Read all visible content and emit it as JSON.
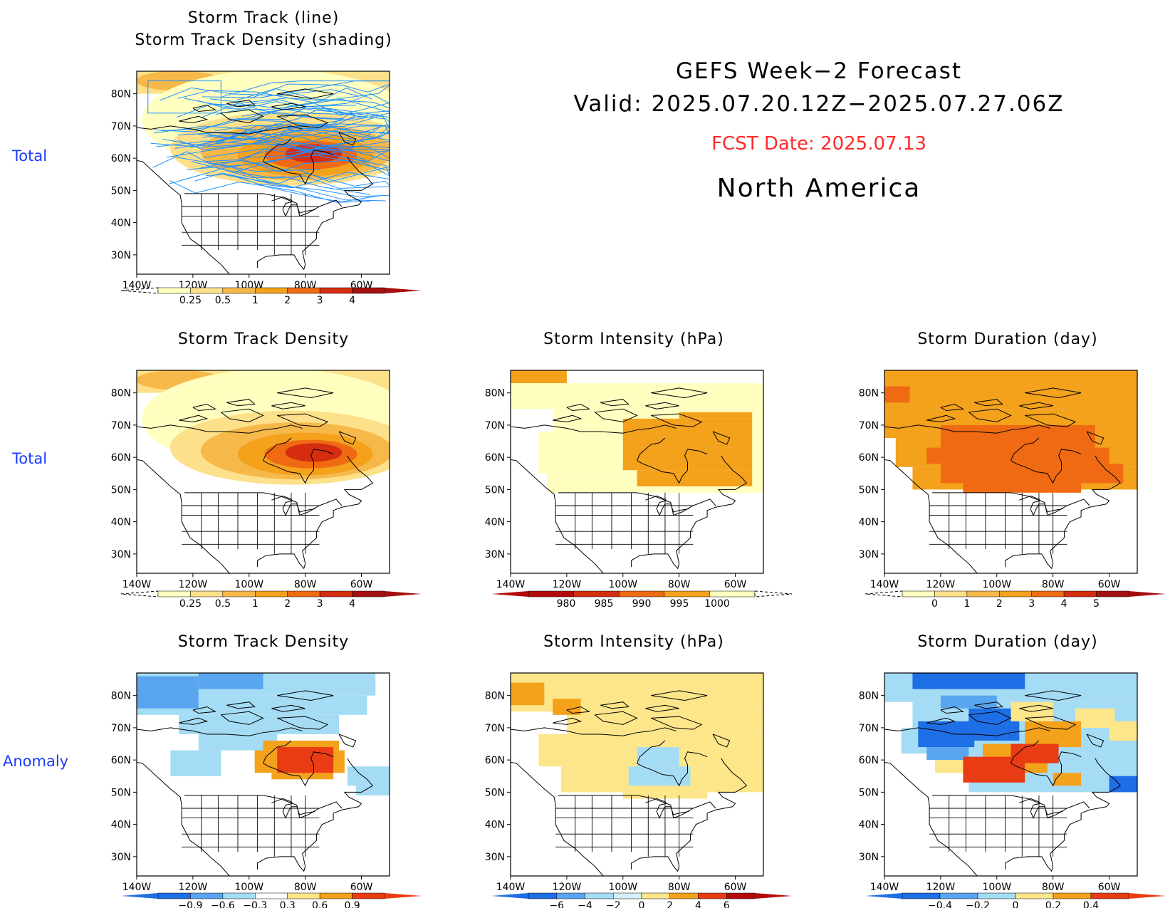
{
  "header": {
    "title": "GEFS Week−2 Forecast",
    "valid": "Valid: 2025.07.20.12Z−2025.07.27.06Z",
    "fcst_date": "FCST Date: 2025.07.13",
    "region": "North America"
  },
  "row_labels": [
    "Total",
    "Total",
    "Anomaly"
  ],
  "axis": {
    "lat_labels": [
      "80N",
      "70N",
      "60N",
      "50N",
      "40N",
      "30N"
    ],
    "lon_labels": [
      "140W",
      "120W",
      "100W",
      "80W",
      "60W"
    ]
  },
  "panels": [
    {
      "id": "p1",
      "row": 0,
      "col": 0,
      "title": "Storm Track (line)\nStorm Track Density (shading)",
      "variable": "density_tracks",
      "colorbar": "cb_density"
    },
    {
      "id": "p2",
      "row": 1,
      "col": 0,
      "title": "Storm Track Density",
      "variable": "density",
      "colorbar": "cb_density"
    },
    {
      "id": "p3",
      "row": 1,
      "col": 1,
      "title": "Storm Intensity (hPa)",
      "variable": "intensity",
      "colorbar": "cb_intensity"
    },
    {
      "id": "p4",
      "row": 1,
      "col": 2,
      "title": "Storm Duration (day)",
      "variable": "duration",
      "colorbar": "cb_duration"
    },
    {
      "id": "p5",
      "row": 2,
      "col": 0,
      "title": "Storm Track Density",
      "variable": "density_anom",
      "colorbar": "cb_density_anom"
    },
    {
      "id": "p6",
      "row": 2,
      "col": 1,
      "title": "Storm Intensity (hPa)",
      "variable": "intensity_anom",
      "colorbar": "cb_intensity_anom"
    },
    {
      "id": "p7",
      "row": 2,
      "col": 2,
      "title": "Storm Duration (day)",
      "variable": "duration_anom",
      "colorbar": "cb_duration_anom"
    }
  ],
  "colorbars": {
    "cb_density": {
      "labels": [
        "0.25",
        "0.5",
        "1",
        "2",
        "3",
        "4"
      ],
      "colors": [
        "#ffffc0",
        "#fde08a",
        "#f7b84a",
        "#f4a11c",
        "#ef6a12",
        "#d62d10",
        "#a50f0f"
      ],
      "left_dashed": true
    },
    "cb_intensity": {
      "labels": [
        "980",
        "985",
        "990",
        "995",
        "1000"
      ],
      "colors": [
        "#b40a0a",
        "#d62d10",
        "#ef6a12",
        "#f4a11c",
        "#ffffc0"
      ],
      "right_dashed": true
    },
    "cb_duration": {
      "labels": [
        "0",
        "1",
        "2",
        "3",
        "4",
        "5"
      ],
      "colors": [
        "#ffffc0",
        "#fde08a",
        "#f7b84a",
        "#f4a11c",
        "#ef6a12",
        "#d62d10",
        "#a50f0f"
      ],
      "left_dashed": true
    },
    "cb_density_anom": {
      "labels": [
        "−0.9",
        "−0.6",
        "−0.3",
        "0.3",
        "0.6",
        "0.9"
      ],
      "colors": [
        "#1e6ee6",
        "#5aa5f0",
        "#a5dcf5",
        "#ffffff",
        "#fde68a",
        "#f4a11c",
        "#ea3c14"
      ]
    },
    "cb_intensity_anom": {
      "labels": [
        "−6",
        "−4",
        "−2",
        "0",
        "2",
        "4",
        "6"
      ],
      "colors": [
        "#1e6ee6",
        "#5aa5f0",
        "#a5dcf5",
        "#d4f0fa",
        "#fde68a",
        "#f4a11c",
        "#ea3c14",
        "#b40a0a"
      ]
    },
    "cb_duration_anom": {
      "labels": [
        "−0.4",
        "−0.2",
        "0",
        "0.2",
        "0.4"
      ],
      "colors": [
        "#1e6ee6",
        "#5aa5f0",
        "#a5dcf5",
        "#fde68a",
        "#f4a11c",
        "#ea3c14"
      ]
    }
  },
  "colors": {
    "row_label": "#1a3cff",
    "fcst_date": "#ff2a2a",
    "track_line": "#1e90ff"
  }
}
